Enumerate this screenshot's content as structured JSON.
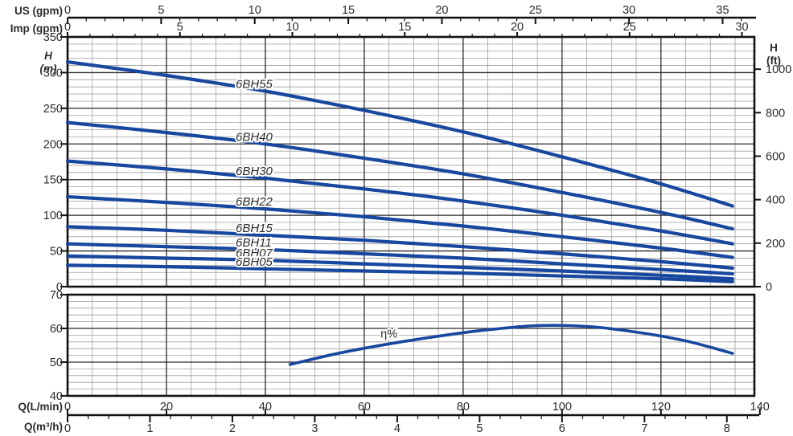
{
  "colors": {
    "curve": "#17479e",
    "grid_minor": "#9f9f9f",
    "grid_major": "#2a2a2a",
    "frame": "#111111",
    "text": "#2b2b2b"
  },
  "labels": {
    "us_axis": "US (gpm)",
    "imp_axis": "Imp (gpm)",
    "head_left_line1": "H",
    "head_left_line2": "(m)",
    "head_right_line1": "H",
    "head_right_line2": "(ft)",
    "q_lmin": "Q(L/min)",
    "q_m3h": "Q(m³/h)"
  },
  "axes": {
    "us_gpm": {
      "major": [
        0,
        5,
        10,
        15,
        20,
        25,
        30,
        35
      ],
      "minor_step": 1,
      "minor_max": 36,
      "lpm_per_unit": 3.785
    },
    "imp_gpm": {
      "major": [
        0,
        5,
        10,
        15,
        20,
        25,
        30
      ],
      "minor_step": 1,
      "minor_max": 30,
      "lpm_per_unit": 4.5461
    },
    "q_lmin": {
      "major": [
        0,
        20,
        40,
        60,
        80,
        100,
        120,
        140
      ],
      "minor_step": 5
    },
    "q_m3h": {
      "major": [
        0,
        1,
        2,
        3,
        4,
        5,
        6,
        7,
        8
      ],
      "minor_step": 0.25,
      "minor_max": 8.25,
      "lpm_per_unit": 16.6667
    },
    "head_m": {
      "major": [
        350,
        300,
        250,
        200,
        150,
        100,
        50,
        0
      ],
      "minor_step": 10,
      "range": [
        0,
        350
      ]
    },
    "head_ft": {
      "major": [
        1000,
        800,
        600,
        400,
        200,
        0
      ],
      "m_per_ft": 0.3048
    },
    "eff_pct": {
      "major": [
        70,
        60,
        50,
        40
      ],
      "minor_step": 2,
      "range": [
        40,
        70
      ]
    }
  },
  "chart_data": {
    "type": "line",
    "title": "",
    "xlabel": "Q (L/min)",
    "ylabel_left": "H (m)",
    "ylabel_right": "H (ft)",
    "xlim_lpm": [
      0,
      138.9
    ],
    "head_ylim_m": [
      0,
      350
    ],
    "efficiency_ylim_pct": [
      40,
      70
    ],
    "grid": "on",
    "series": [
      {
        "name": "6BH55",
        "points": [
          [
            0,
            315
          ],
          [
            20,
            296
          ],
          [
            40,
            274
          ],
          [
            60,
            247
          ],
          [
            80,
            217
          ],
          [
            100,
            182
          ],
          [
            120,
            144
          ],
          [
            134.5,
            113
          ]
        ]
      },
      {
        "name": "6BH40",
        "points": [
          [
            0,
            230
          ],
          [
            20,
            216
          ],
          [
            40,
            200
          ],
          [
            60,
            180
          ],
          [
            80,
            158
          ],
          [
            100,
            132
          ],
          [
            120,
            104
          ],
          [
            134.5,
            81
          ]
        ]
      },
      {
        "name": "6BH30",
        "points": [
          [
            0,
            176
          ],
          [
            20,
            165
          ],
          [
            40,
            152
          ],
          [
            60,
            137
          ],
          [
            80,
            120
          ],
          [
            100,
            100
          ],
          [
            120,
            78
          ],
          [
            134.5,
            60
          ]
        ]
      },
      {
        "name": "6BH22",
        "points": [
          [
            0,
            126
          ],
          [
            20,
            118
          ],
          [
            40,
            109
          ],
          [
            60,
            98
          ],
          [
            80,
            85
          ],
          [
            100,
            70
          ],
          [
            120,
            54
          ],
          [
            134.5,
            41
          ]
        ]
      },
      {
        "name": "6BH15",
        "points": [
          [
            0,
            84
          ],
          [
            20,
            79
          ],
          [
            40,
            72
          ],
          [
            60,
            65
          ],
          [
            80,
            56
          ],
          [
            100,
            46
          ],
          [
            120,
            35
          ],
          [
            134.5,
            26
          ]
        ]
      },
      {
        "name": "6BH11",
        "points": [
          [
            0,
            60
          ],
          [
            20,
            56
          ],
          [
            40,
            52
          ],
          [
            60,
            46
          ],
          [
            80,
            40
          ],
          [
            100,
            32
          ],
          [
            120,
            24
          ],
          [
            134.5,
            18
          ]
        ]
      },
      {
        "name": "6BH07",
        "points": [
          [
            0,
            43
          ],
          [
            20,
            40
          ],
          [
            40,
            37
          ],
          [
            60,
            32
          ],
          [
            80,
            27
          ],
          [
            100,
            22
          ],
          [
            120,
            16
          ],
          [
            134.5,
            11
          ]
        ]
      },
      {
        "name": "6BH05",
        "points": [
          [
            0,
            30
          ],
          [
            20,
            28
          ],
          [
            40,
            25
          ],
          [
            60,
            22
          ],
          [
            80,
            19
          ],
          [
            100,
            15
          ],
          [
            120,
            11
          ],
          [
            134.5,
            7
          ]
        ]
      }
    ],
    "series_label_at_q": 34,
    "efficiency": {
      "name": "η%",
      "label_at_q": 65,
      "points": [
        [
          45,
          49.3
        ],
        [
          55,
          52.7
        ],
        [
          65,
          55.4
        ],
        [
          75,
          57.7
        ],
        [
          85,
          59.6
        ],
        [
          95,
          60.8
        ],
        [
          105,
          60.6
        ],
        [
          115,
          58.9
        ],
        [
          125,
          56.3
        ],
        [
          134.5,
          52.6
        ]
      ]
    }
  }
}
